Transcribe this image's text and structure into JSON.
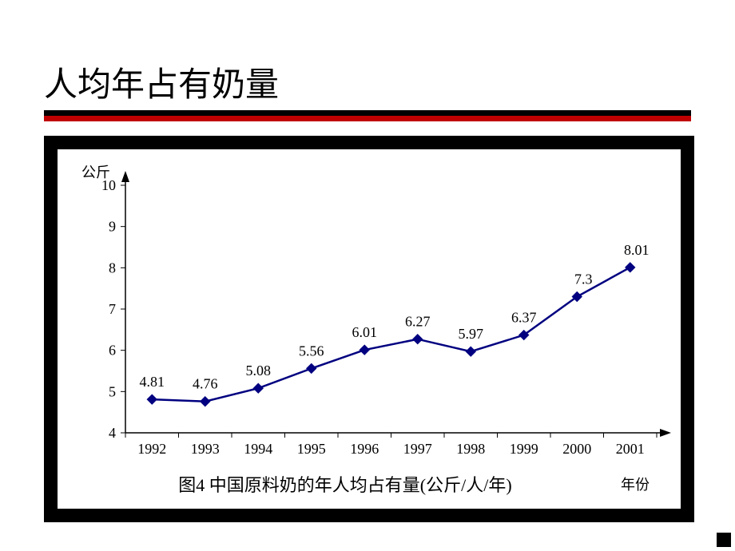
{
  "slide": {
    "title": "人均年占有奶量"
  },
  "chart": {
    "type": "line",
    "y_axis_label": "公斤",
    "x_axis_label": "年份",
    "caption": "图4 中国原料奶的年人均占有量(公斤/人/年)",
    "x_categories": [
      "1992",
      "1993",
      "1994",
      "1995",
      "1996",
      "1997",
      "1998",
      "1999",
      "2000",
      "2001"
    ],
    "y_ticks": [
      4,
      5,
      6,
      7,
      8,
      9,
      10
    ],
    "ylim": [
      4,
      10
    ],
    "values": [
      4.81,
      4.76,
      5.08,
      5.56,
      6.01,
      6.27,
      5.97,
      6.37,
      7.3,
      8.01
    ],
    "data_labels": [
      "4.81",
      "4.76",
      "5.08",
      "5.56",
      "6.01",
      "6.27",
      "5.97",
      "6.37",
      "7.3",
      "8.01"
    ],
    "line_color": "#000080",
    "marker_color": "#000080",
    "marker_style": "diamond",
    "marker_size": 6,
    "line_width": 2.5,
    "axis_color": "#000000",
    "text_color": "#000000",
    "background_color": "#ffffff",
    "tick_fontsize": 18,
    "label_fontsize": 18,
    "caption_fontsize": 22,
    "data_label_fontsize": 18
  }
}
